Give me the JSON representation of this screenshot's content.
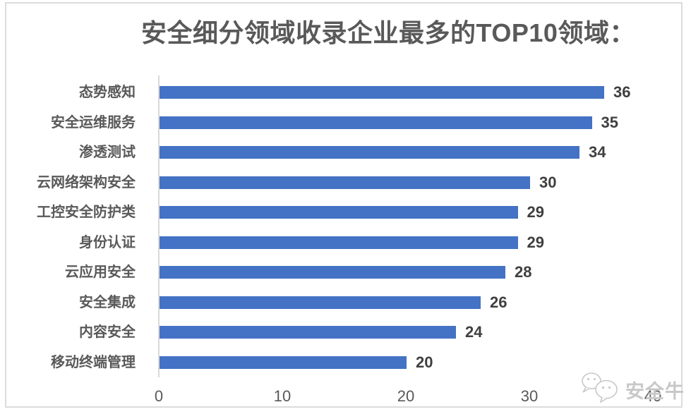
{
  "chart_data": {
    "type": "bar",
    "orientation": "horizontal",
    "title": "安全细分领域收录企业最多的TOP10领域：",
    "categories": [
      "态势感知",
      "安全运维服务",
      "渗透测试",
      "云网络架构安全",
      "工控安全防护类",
      "身份认证",
      "云应用安全",
      "安全集成",
      "内容安全",
      "移动终端管理"
    ],
    "values": [
      36,
      35,
      34,
      30,
      29,
      29,
      28,
      26,
      24,
      20
    ],
    "xlabel": "",
    "ylabel": "",
    "xlim": [
      0,
      40
    ],
    "x_ticks": [
      0,
      10,
      20,
      30,
      40
    ],
    "grid": false,
    "legend": false,
    "data_labels": true,
    "bar_color": "#4472C4"
  },
  "watermark": {
    "text": "安全牛",
    "icon": "wechat-chat-bubbles-icon"
  },
  "colors": {
    "bar": "#4472C4",
    "frame_border": "#DCDCDC",
    "axis_line": "#D9D9D9",
    "title_text": "#595959",
    "category_text": "#595959",
    "value_text": "#3F3F3F",
    "tick_text": "#595959",
    "watermark_text": "#C8C8C8"
  }
}
